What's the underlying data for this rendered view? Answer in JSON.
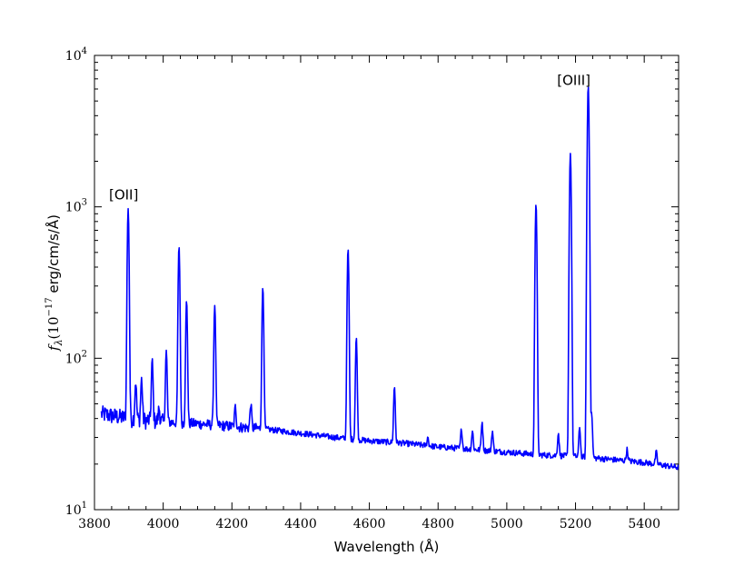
{
  "chart_data": {
    "type": "line",
    "title": "",
    "xlabel": "Wavelength (Å)",
    "ylabel": "f_λ(10^-17 erg/cm/s/Å)",
    "ylabel_parts": {
      "sym": "f",
      "sub": "λ",
      "pre": "(10",
      "exp": "−17",
      "post": " erg/cm/s/Å)"
    },
    "xlim": [
      3800,
      5500
    ],
    "ylim": [
      10,
      10000
    ],
    "yscale": "log",
    "grid": false,
    "legend": "none",
    "x_ticks": [
      3800,
      4000,
      4200,
      4400,
      4600,
      4800,
      5000,
      5200,
      5400
    ],
    "y_ticks": [
      {
        "value": 10,
        "base": "10",
        "exp": "1"
      },
      {
        "value": 100,
        "base": "10",
        "exp": "2"
      },
      {
        "value": 1000,
        "base": "10",
        "exp": "3"
      },
      {
        "value": 10000,
        "base": "10",
        "exp": "4"
      }
    ],
    "annotations": [
      {
        "text": "[OII]",
        "x": 3885,
        "y": 1120
      },
      {
        "text": "[OIII]",
        "x": 5195,
        "y": 6400
      }
    ],
    "series": [
      {
        "color": "#0000ff",
        "continuum": [
          [
            3820,
            43
          ],
          [
            3900,
            40
          ],
          [
            4000,
            38
          ],
          [
            4100,
            37
          ],
          [
            4200,
            35.5
          ],
          [
            4300,
            34
          ],
          [
            4400,
            32
          ],
          [
            4500,
            30
          ],
          [
            4600,
            28.5
          ],
          [
            4700,
            27.5
          ],
          [
            4800,
            26
          ],
          [
            4900,
            25
          ],
          [
            5000,
            24
          ],
          [
            5100,
            23
          ],
          [
            5200,
            22.5
          ],
          [
            5300,
            21.5
          ],
          [
            5400,
            20.5
          ],
          [
            5500,
            19
          ]
        ],
        "lines": [
          {
            "x": 3898,
            "peak": 970
          },
          {
            "x": 3920,
            "peak": 70
          },
          {
            "x": 3937,
            "peak": 73
          },
          {
            "x": 3968,
            "peak": 97
          },
          {
            "x": 3988,
            "peak": 47
          },
          {
            "x": 4009,
            "peak": 112
          },
          {
            "x": 4046,
            "peak": 550
          },
          {
            "x": 4068,
            "peak": 240
          },
          {
            "x": 4150,
            "peak": 225
          },
          {
            "x": 4210,
            "peak": 48
          },
          {
            "x": 4255,
            "peak": 50
          },
          {
            "x": 4290,
            "peak": 295
          },
          {
            "x": 4538,
            "peak": 530
          },
          {
            "x": 4562,
            "peak": 137
          },
          {
            "x": 4673,
            "peak": 65
          },
          {
            "x": 4770,
            "peak": 30
          },
          {
            "x": 4868,
            "peak": 34
          },
          {
            "x": 4900,
            "peak": 33
          },
          {
            "x": 4928,
            "peak": 38
          },
          {
            "x": 4958,
            "peak": 33
          },
          {
            "x": 5085,
            "peak": 1050
          },
          {
            "x": 5150,
            "peak": 32
          },
          {
            "x": 5185,
            "peak": 2250
          },
          {
            "x": 5212,
            "peak": 35
          },
          {
            "x": 5237,
            "peak": 6300
          },
          {
            "x": 5247,
            "peak": 43
          },
          {
            "x": 5350,
            "peak": 25
          },
          {
            "x": 5435,
            "peak": 24
          }
        ]
      }
    ]
  }
}
